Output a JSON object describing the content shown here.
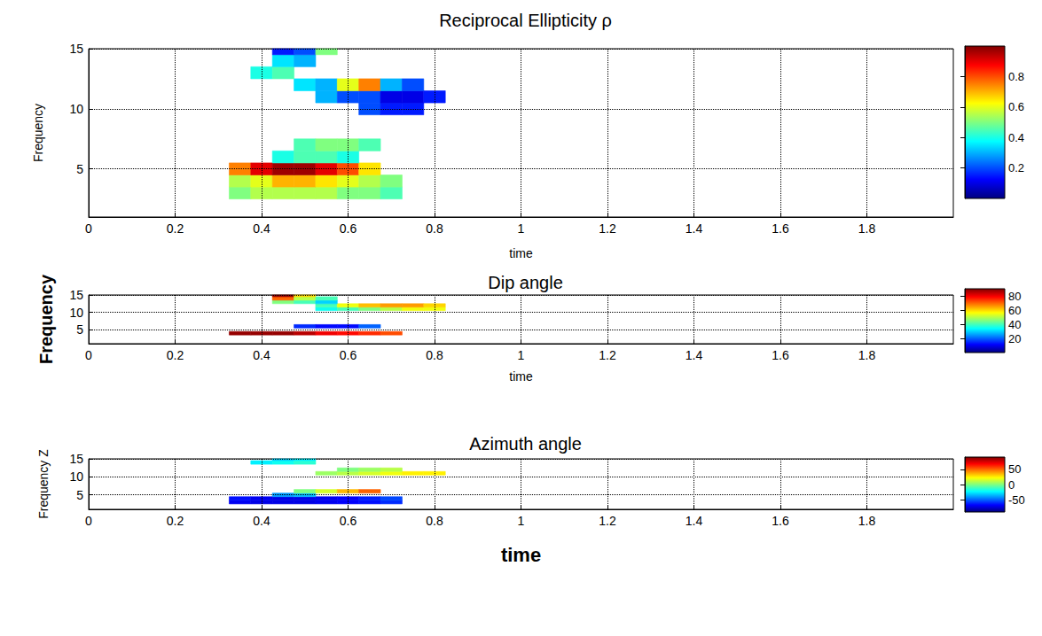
{
  "chart_data": [
    {
      "type": "heatmap",
      "title": "Reciprocal Ellipticity ρ",
      "x_label": "time",
      "y_label": "Frequency",
      "xlim": [
        0,
        2
      ],
      "xticks": [
        0,
        0.2,
        0.4,
        0.6,
        0.8,
        1,
        1.2,
        1.4,
        1.6,
        1.8
      ],
      "ylim": [
        1,
        15
      ],
      "yticks": [
        5,
        10,
        15
      ],
      "grid": true,
      "colorbar": {
        "range": [
          0,
          1
        ],
        "ticks": [
          0.2,
          0.4,
          0.6,
          0.8
        ]
      },
      "cells": [
        [
          0.35,
          3,
          0.5
        ],
        [
          0.4,
          3,
          0.55
        ],
        [
          0.45,
          3,
          0.55
        ],
        [
          0.5,
          3,
          0.55
        ],
        [
          0.55,
          3,
          0.55
        ],
        [
          0.6,
          3,
          0.5
        ],
        [
          0.65,
          3,
          0.5
        ],
        [
          0.7,
          3,
          0.45
        ],
        [
          0.35,
          4,
          0.55
        ],
        [
          0.4,
          4,
          0.6
        ],
        [
          0.45,
          4,
          0.7
        ],
        [
          0.5,
          4,
          0.7
        ],
        [
          0.55,
          4,
          0.65
        ],
        [
          0.6,
          4,
          0.6
        ],
        [
          0.65,
          4,
          0.55
        ],
        [
          0.7,
          4,
          0.5
        ],
        [
          0.35,
          5,
          0.75
        ],
        [
          0.4,
          5,
          0.9
        ],
        [
          0.45,
          5,
          0.97
        ],
        [
          0.5,
          5,
          0.97
        ],
        [
          0.55,
          5,
          0.9
        ],
        [
          0.6,
          5,
          0.8
        ],
        [
          0.65,
          5,
          0.65
        ],
        [
          0.45,
          6,
          0.4
        ],
        [
          0.5,
          6,
          0.45
        ],
        [
          0.55,
          6,
          0.45
        ],
        [
          0.6,
          6,
          0.4
        ],
        [
          0.5,
          7,
          0.45
        ],
        [
          0.55,
          7,
          0.5
        ],
        [
          0.6,
          7,
          0.5
        ],
        [
          0.65,
          7,
          0.45
        ],
        [
          0.65,
          10,
          0.2
        ],
        [
          0.7,
          10,
          0.15
        ],
        [
          0.75,
          10,
          0.15
        ],
        [
          0.55,
          11,
          0.3
        ],
        [
          0.6,
          11,
          0.2
        ],
        [
          0.65,
          11,
          0.2
        ],
        [
          0.7,
          11,
          0.1
        ],
        [
          0.75,
          11,
          0.1
        ],
        [
          0.8,
          11,
          0.15
        ],
        [
          0.5,
          12,
          0.35
        ],
        [
          0.55,
          12,
          0.3
        ],
        [
          0.6,
          12,
          0.6
        ],
        [
          0.65,
          12,
          0.75
        ],
        [
          0.7,
          12,
          0.3
        ],
        [
          0.75,
          12,
          0.2
        ],
        [
          0.4,
          13,
          0.4
        ],
        [
          0.45,
          13,
          0.45
        ],
        [
          0.45,
          14,
          0.35
        ],
        [
          0.5,
          14,
          0.3
        ],
        [
          0.45,
          15,
          0.15
        ],
        [
          0.5,
          15,
          0.2
        ],
        [
          0.55,
          15,
          0.5
        ]
      ]
    },
    {
      "type": "heatmap",
      "title": "Dip angle",
      "x_label": "time",
      "y_label": "Frequency",
      "xlim": [
        0,
        2
      ],
      "xticks": [
        0,
        0.2,
        0.4,
        0.6,
        0.8,
        1,
        1.2,
        1.4,
        1.6,
        1.8
      ],
      "ylim": [
        1,
        15
      ],
      "yticks": [
        5,
        10,
        15
      ],
      "grid": true,
      "colorbar": {
        "range": [
          0,
          90
        ],
        "ticks": [
          20,
          40,
          60,
          80
        ]
      },
      "cells": [
        [
          0.35,
          4,
          88
        ],
        [
          0.4,
          4,
          88
        ],
        [
          0.45,
          4,
          88
        ],
        [
          0.5,
          4,
          85
        ],
        [
          0.55,
          4,
          80
        ],
        [
          0.6,
          4,
          78
        ],
        [
          0.65,
          4,
          75
        ],
        [
          0.7,
          4,
          72
        ],
        [
          0.5,
          6,
          15
        ],
        [
          0.55,
          6,
          12
        ],
        [
          0.6,
          6,
          12
        ],
        [
          0.65,
          6,
          20
        ],
        [
          0.55,
          11,
          35
        ],
        [
          0.6,
          11,
          40
        ],
        [
          0.65,
          11,
          45
        ],
        [
          0.7,
          11,
          50
        ],
        [
          0.75,
          11,
          55
        ],
        [
          0.8,
          11,
          55
        ],
        [
          0.55,
          12,
          40
        ],
        [
          0.6,
          12,
          55
        ],
        [
          0.65,
          12,
          62
        ],
        [
          0.7,
          12,
          65
        ],
        [
          0.75,
          12,
          65
        ],
        [
          0.8,
          12,
          60
        ],
        [
          0.45,
          13,
          45
        ],
        [
          0.5,
          13,
          40
        ],
        [
          0.55,
          13,
          30
        ],
        [
          0.45,
          14,
          70
        ],
        [
          0.5,
          14,
          50
        ],
        [
          0.55,
          14,
          40
        ],
        [
          0.45,
          15,
          88
        ],
        [
          0.5,
          15,
          60
        ]
      ]
    },
    {
      "type": "heatmap",
      "title": "Azimuth angle",
      "x_label": "time",
      "y_label": "Frequency Z",
      "xlim": [
        0,
        2
      ],
      "xticks": [
        0,
        0.2,
        0.4,
        0.6,
        0.8,
        1,
        1.2,
        1.4,
        1.6,
        1.8
      ],
      "ylim": [
        1,
        15
      ],
      "yticks": [
        5,
        10,
        15
      ],
      "grid": true,
      "colorbar": {
        "range": [
          -90,
          90
        ],
        "ticks": [
          -50,
          0,
          50
        ]
      },
      "cells": [
        [
          0.35,
          3,
          -70
        ],
        [
          0.4,
          3,
          -72
        ],
        [
          0.45,
          3,
          -72
        ],
        [
          0.5,
          3,
          -72
        ],
        [
          0.55,
          3,
          -70
        ],
        [
          0.6,
          3,
          -68
        ],
        [
          0.65,
          3,
          -65
        ],
        [
          0.7,
          3,
          -60
        ],
        [
          0.35,
          4,
          -65
        ],
        [
          0.4,
          4,
          -70
        ],
        [
          0.45,
          4,
          -72
        ],
        [
          0.5,
          4,
          -72
        ],
        [
          0.55,
          4,
          -70
        ],
        [
          0.6,
          4,
          -68
        ],
        [
          0.65,
          4,
          -62
        ],
        [
          0.7,
          4,
          -55
        ],
        [
          0.45,
          5,
          -40
        ],
        [
          0.5,
          5,
          -35
        ],
        [
          0.5,
          6,
          0
        ],
        [
          0.55,
          6,
          15
        ],
        [
          0.6,
          6,
          35
        ],
        [
          0.65,
          6,
          50
        ],
        [
          0.55,
          11,
          5
        ],
        [
          0.6,
          11,
          10
        ],
        [
          0.65,
          11,
          15
        ],
        [
          0.7,
          11,
          20
        ],
        [
          0.75,
          11,
          25
        ],
        [
          0.8,
          11,
          25
        ],
        [
          0.6,
          12,
          0
        ],
        [
          0.65,
          12,
          5
        ],
        [
          0.7,
          12,
          10
        ],
        [
          0.4,
          14,
          -25
        ],
        [
          0.45,
          14,
          -20
        ],
        [
          0.5,
          14,
          -15
        ],
        [
          0.45,
          15,
          -30
        ],
        [
          0.5,
          15,
          -25
        ]
      ]
    }
  ]
}
